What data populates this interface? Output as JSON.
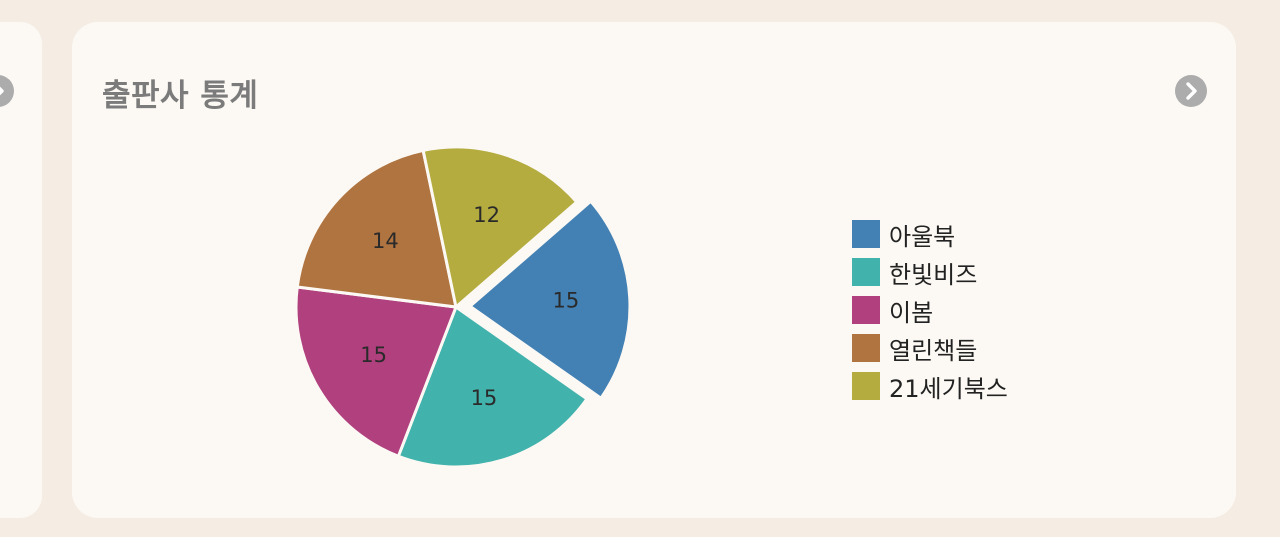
{
  "card": {
    "title": "출판사 통계"
  },
  "icons": {
    "next": "chevron-right-icon"
  },
  "chart_data": {
    "type": "pie",
    "categories": [
      "아울북",
      "한빛비즈",
      "이봄",
      "열린책들",
      "21세기북스"
    ],
    "values": [
      15,
      15,
      15,
      14,
      12
    ],
    "colors": [
      "#4381b4",
      "#42b2ac",
      "#b0407e",
      "#b07440",
      "#b5ac40"
    ],
    "exploded": [
      0
    ],
    "legend_position": "right"
  }
}
